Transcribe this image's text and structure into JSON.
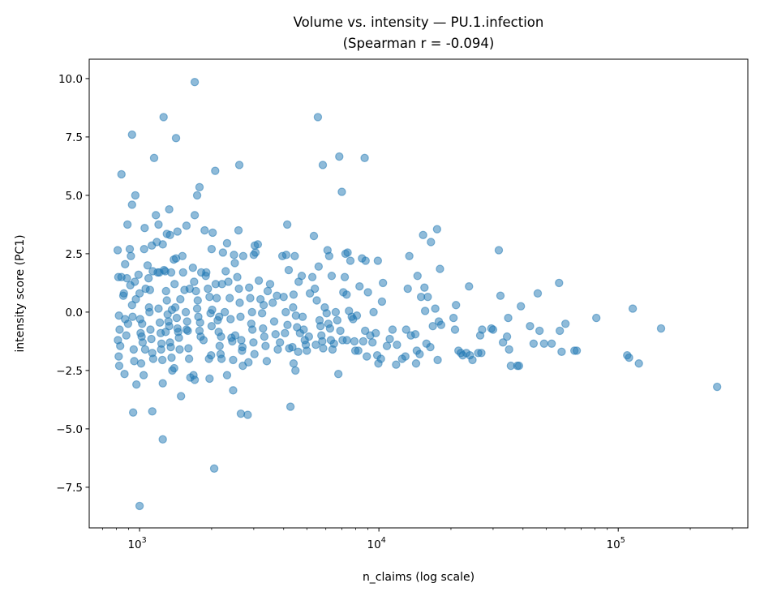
{
  "chart_data": {
    "type": "scatter",
    "title": "Volume vs. intensity — PU.1.infection",
    "subtitle": "(Spearman r = -0.094)",
    "xlabel": "n_claims (log scale)",
    "ylabel": "intensity score (PC1)",
    "x_scale": "log",
    "xlim": [
      616,
      348000
    ],
    "ylim": [
      -9.24,
      10.83
    ],
    "grid": false,
    "legend": "none",
    "marker_color": "#1f77b4",
    "marker_alpha": 0.5,
    "x_ticks": [
      {
        "value": 1000,
        "base": "10",
        "exp": "3"
      },
      {
        "value": 10000,
        "base": "10",
        "exp": "4"
      },
      {
        "value": 100000,
        "base": "10",
        "exp": "5"
      }
    ],
    "y_ticks": [
      {
        "value": -7.5,
        "label": "−7.5"
      },
      {
        "value": -5.0,
        "label": "−5.0"
      },
      {
        "value": -2.5,
        "label": "−2.5"
      },
      {
        "value": 0.0,
        "label": "0.0"
      },
      {
        "value": 2.5,
        "label": "2.5"
      },
      {
        "value": 5.0,
        "label": "5.0"
      },
      {
        "value": 7.5,
        "label": "7.5"
      },
      {
        "value": 10.0,
        "label": "10.0"
      }
    ],
    "points": [
      [
        810,
        2.65
      ],
      [
        815,
        1.5
      ],
      [
        820,
        -0.15
      ],
      [
        825,
        -0.75
      ],
      [
        812,
        -1.2
      ],
      [
        830,
        -1.45
      ],
      [
        818,
        -1.9
      ],
      [
        822,
        -2.3
      ],
      [
        840,
        1.5
      ],
      [
        840,
        5.9
      ],
      [
        855,
        0.7
      ],
      [
        860,
        0.8
      ],
      [
        870,
        -0.3
      ],
      [
        880,
        -1.0
      ],
      [
        865,
        -2.65
      ],
      [
        870,
        2.05
      ],
      [
        885,
        1.45
      ],
      [
        890,
        3.75
      ],
      [
        895,
        -0.5
      ],
      [
        910,
        2.7
      ],
      [
        920,
        2.4
      ],
      [
        915,
        1.15
      ],
      [
        930,
        0.3
      ],
      [
        935,
        -0.2
      ],
      [
        945,
        -1.6
      ],
      [
        950,
        -2.1
      ],
      [
        960,
        5.0
      ],
      [
        930,
        4.6
      ],
      [
        930,
        7.6
      ],
      [
        940,
        -4.3
      ],
      [
        970,
        -3.1
      ],
      [
        955,
        1.3
      ],
      [
        965,
        0.55
      ],
      [
        990,
        1.6
      ],
      [
        1000,
        0.8
      ],
      [
        1005,
        -0.3
      ],
      [
        1010,
        -0.9
      ],
      [
        1020,
        -1.05
      ],
      [
        1030,
        -1.3
      ],
      [
        1015,
        -2.2
      ],
      [
        1040,
        -2.7
      ],
      [
        1050,
        3.6
      ],
      [
        1045,
        2.7
      ],
      [
        1060,
        1.0
      ],
      [
        1000,
        -8.3
      ],
      [
        1025,
        -0.5
      ],
      [
        1055,
        -1.6
      ],
      [
        1080,
        2.0
      ],
      [
        1090,
        1.45
      ],
      [
        1095,
        0.2
      ],
      [
        1100,
        0.0
      ],
      [
        1110,
        -0.75
      ],
      [
        1120,
        -1.15
      ],
      [
        1130,
        -1.75
      ],
      [
        1140,
        -2.0
      ],
      [
        1125,
        2.85
      ],
      [
        1150,
        6.6
      ],
      [
        1130,
        -4.25
      ],
      [
        1105,
        0.95
      ],
      [
        1135,
        1.75
      ],
      [
        1170,
        4.15
      ],
      [
        1180,
        3.0
      ],
      [
        1190,
        1.7
      ],
      [
        1210,
        1.7
      ],
      [
        1200,
        0.15
      ],
      [
        1215,
        -0.45
      ],
      [
        1225,
        -0.9
      ],
      [
        1235,
        -1.35
      ],
      [
        1245,
        -2.05
      ],
      [
        1250,
        -3.05
      ],
      [
        1260,
        8.35
      ],
      [
        1200,
        3.75
      ],
      [
        1250,
        2.9
      ],
      [
        1250,
        -5.45
      ],
      [
        1230,
        -1.6
      ],
      [
        1265,
        1.8
      ],
      [
        1280,
        1.75
      ],
      [
        1290,
        0.9
      ],
      [
        1300,
        0.5
      ],
      [
        1310,
        -0.1
      ],
      [
        1320,
        -0.4
      ],
      [
        1330,
        -0.6
      ],
      [
        1340,
        -1.3
      ],
      [
        1350,
        -1.5
      ],
      [
        1360,
        -1.95
      ],
      [
        1370,
        -2.5
      ],
      [
        1330,
        4.4
      ],
      [
        1340,
        3.3
      ],
      [
        1355,
        1.7
      ],
      [
        1365,
        0.1
      ],
      [
        1300,
        3.35
      ],
      [
        1285,
        -0.85
      ],
      [
        1390,
        2.25
      ],
      [
        1420,
        2.3
      ],
      [
        1400,
        1.2
      ],
      [
        1410,
        0.2
      ],
      [
        1430,
        -0.25
      ],
      [
        1440,
        -0.7
      ],
      [
        1450,
        -0.85
      ],
      [
        1460,
        -1.1
      ],
      [
        1470,
        -1.6
      ],
      [
        1420,
        7.45
      ],
      [
        1440,
        3.45
      ],
      [
        1490,
        -3.6
      ],
      [
        1480,
        0.55
      ],
      [
        1395,
        -2.4
      ],
      [
        1510,
        2.4
      ],
      [
        1520,
        1.7
      ],
      [
        1540,
        0.95
      ],
      [
        1560,
        0.0
      ],
      [
        1570,
        -0.75
      ],
      [
        1590,
        -0.8
      ],
      [
        1600,
        -1.55
      ],
      [
        1610,
        -2.0
      ],
      [
        1630,
        -2.8
      ],
      [
        1570,
        3.7
      ],
      [
        1580,
        -0.4
      ],
      [
        1620,
        1.0
      ],
      [
        1700,
        9.85
      ],
      [
        1780,
        5.35
      ],
      [
        1740,
        5.0
      ],
      [
        1700,
        4.15
      ],
      [
        1670,
        1.9
      ],
      [
        1690,
        1.3
      ],
      [
        1720,
        0.9
      ],
      [
        1740,
        0.15
      ],
      [
        1760,
        -0.2
      ],
      [
        1780,
        -0.8
      ],
      [
        1800,
        -1.05
      ],
      [
        1680,
        -2.7
      ],
      [
        1700,
        -2.9
      ],
      [
        1810,
        1.7
      ],
      [
        1750,
        0.5
      ],
      [
        1790,
        -0.45
      ],
      [
        1870,
        3.5
      ],
      [
        2020,
        3.4
      ],
      [
        2000,
        2.7
      ],
      [
        1900,
        1.7
      ],
      [
        1930,
        1.0
      ],
      [
        1960,
        0.65
      ],
      [
        1980,
        -0.05
      ],
      [
        2000,
        -0.6
      ],
      [
        1850,
        -1.2
      ],
      [
        1990,
        -1.85
      ],
      [
        1950,
        -2.0
      ],
      [
        1960,
        -2.85
      ],
      [
        1890,
        1.55
      ],
      [
        2050,
        -6.7
      ],
      [
        2010,
        0.1
      ],
      [
        2070,
        6.05
      ],
      [
        2080,
        1.2
      ],
      [
        2100,
        0.6
      ],
      [
        2120,
        -0.35
      ],
      [
        2140,
        -0.85
      ],
      [
        2160,
        -1.45
      ],
      [
        2180,
        -1.8
      ],
      [
        2200,
        -2.0
      ],
      [
        2230,
        2.55
      ],
      [
        2190,
        -1.05
      ],
      [
        2150,
        -0.2
      ],
      [
        2210,
        1.2
      ],
      [
        2320,
        2.95
      ],
      [
        2290,
        1.75
      ],
      [
        2350,
        1.3
      ],
      [
        2380,
        0.6
      ],
      [
        2400,
        -0.3
      ],
      [
        2420,
        -1.1
      ],
      [
        2440,
        -1.25
      ],
      [
        2460,
        -2.05
      ],
      [
        2320,
        -2.7
      ],
      [
        2460,
        -3.35
      ],
      [
        2480,
        2.45
      ],
      [
        2500,
        2.1
      ],
      [
        2510,
        -1.0
      ],
      [
        2270,
        0.0
      ],
      [
        2610,
        6.3
      ],
      [
        2590,
        3.5
      ],
      [
        2560,
        1.5
      ],
      [
        2600,
        1.0
      ],
      [
        2620,
        0.4
      ],
      [
        2640,
        -0.2
      ],
      [
        2660,
        -1.2
      ],
      [
        2680,
        -1.65
      ],
      [
        2700,
        -2.3
      ],
      [
        2650,
        -4.35
      ],
      [
        2710,
        2.4
      ],
      [
        2690,
        -1.5
      ],
      [
        2830,
        -4.4
      ],
      [
        2850,
        -2.15
      ],
      [
        2870,
        1.05
      ],
      [
        2900,
        0.6
      ],
      [
        2930,
        -0.5
      ],
      [
        2960,
        -0.75
      ],
      [
        2990,
        -1.3
      ],
      [
        3020,
        -1.8
      ],
      [
        3050,
        2.55
      ],
      [
        3000,
        2.45
      ],
      [
        3030,
        2.85
      ],
      [
        2950,
        0.0
      ],
      [
        3120,
        2.9
      ],
      [
        3150,
        1.35
      ],
      [
        3200,
        0.55
      ],
      [
        3250,
        -0.05
      ],
      [
        3280,
        -0.7
      ],
      [
        3320,
        -1.05
      ],
      [
        3360,
        -1.45
      ],
      [
        3400,
        -2.1
      ],
      [
        3430,
        0.9
      ],
      [
        3300,
        0.3
      ],
      [
        3510,
        1.2
      ],
      [
        3600,
        0.4
      ],
      [
        3650,
        -0.4
      ],
      [
        3700,
        -0.95
      ],
      [
        3780,
        -1.6
      ],
      [
        3860,
        -1.3
      ],
      [
        3750,
        0.7
      ],
      [
        4140,
        3.75
      ],
      [
        3950,
        2.4
      ],
      [
        4200,
        1.8
      ],
      [
        4000,
        0.65
      ],
      [
        4080,
        0.0
      ],
      [
        4150,
        -0.55
      ],
      [
        4220,
        -1.55
      ],
      [
        4270,
        -4.05
      ],
      [
        4400,
        -2.2
      ],
      [
        4050,
        -0.9
      ],
      [
        4100,
        2.45
      ],
      [
        4480,
        -2.5
      ],
      [
        4350,
        -1.5
      ],
      [
        4600,
        -1.7
      ],
      [
        4400,
        0.75
      ],
      [
        4500,
        -0.15
      ],
      [
        4550,
        -0.65
      ],
      [
        4680,
        -0.9
      ],
      [
        4620,
        1.3
      ],
      [
        4450,
        2.4
      ],
      [
        4380,
        0.2
      ],
      [
        4760,
        1.55
      ],
      [
        4800,
        -0.2
      ],
      [
        4850,
        -0.75
      ],
      [
        4900,
        -1.2
      ],
      [
        4950,
        -1.4
      ],
      [
        5000,
        -1.65
      ],
      [
        5100,
        -1.05
      ],
      [
        5150,
        0.8
      ],
      [
        5560,
        8.35
      ],
      [
        5830,
        6.3
      ],
      [
        5350,
        3.26
      ],
      [
        5600,
        1.95
      ],
      [
        5270,
        1.5
      ],
      [
        5400,
        1.0
      ],
      [
        5500,
        0.5
      ],
      [
        5650,
        -0.35
      ],
      [
        5700,
        -0.6
      ],
      [
        5750,
        -1.0
      ],
      [
        5800,
        -1.25
      ],
      [
        5850,
        -1.55
      ],
      [
        5450,
        -1.4
      ],
      [
        6100,
        2.65
      ],
      [
        6200,
        2.4
      ],
      [
        5940,
        0.2
      ],
      [
        6050,
        -0.05
      ],
      [
        6150,
        -0.5
      ],
      [
        6250,
        -0.7
      ],
      [
        6300,
        -1.2
      ],
      [
        6400,
        -1.6
      ],
      [
        6490,
        -1.35
      ],
      [
        6350,
        1.55
      ],
      [
        6830,
        6.66
      ],
      [
        7000,
        5.15
      ],
      [
        7250,
        2.5
      ],
      [
        7100,
        0.85
      ],
      [
        6600,
        0.0
      ],
      [
        6700,
        -0.35
      ],
      [
        6900,
        -0.8
      ],
      [
        7050,
        -1.2
      ],
      [
        6770,
        -2.65
      ],
      [
        7200,
        1.5
      ],
      [
        7400,
        2.55
      ],
      [
        7600,
        2.2
      ],
      [
        7330,
        0.75
      ],
      [
        7500,
        0.05
      ],
      [
        7700,
        -0.2
      ],
      [
        7800,
        -0.3
      ],
      [
        7350,
        -1.2
      ],
      [
        7970,
        -1.65
      ],
      [
        7900,
        -1.25
      ],
      [
        8720,
        6.6
      ],
      [
        8500,
        2.3
      ],
      [
        8300,
        1.1
      ],
      [
        8090,
        -0.15
      ],
      [
        8760,
        -0.8
      ],
      [
        8600,
        -1.25
      ],
      [
        8200,
        -1.65
      ],
      [
        8900,
        -1.9
      ],
      [
        8800,
        2.2
      ],
      [
        9900,
        2.2
      ],
      [
        9000,
        0.85
      ],
      [
        9500,
        0.0
      ],
      [
        9200,
        -1.0
      ],
      [
        9400,
        -1.3
      ],
      [
        9840,
        -1.85
      ],
      [
        9950,
        -2.2
      ],
      [
        9700,
        -0.9
      ],
      [
        10400,
        1.25
      ],
      [
        10300,
        0.45
      ],
      [
        11100,
        -1.15
      ],
      [
        10800,
        -1.45
      ],
      [
        10200,
        -2.0
      ],
      [
        11400,
        -0.75
      ],
      [
        11900,
        -1.4
      ],
      [
        12500,
        -2.0
      ],
      [
        11800,
        -2.25
      ],
      [
        13400,
        2.4
      ],
      [
        13200,
        1.0
      ],
      [
        13000,
        -0.75
      ],
      [
        13600,
        -1.0
      ],
      [
        12900,
        -1.9
      ],
      [
        14500,
        1.55
      ],
      [
        15000,
        0.65
      ],
      [
        14200,
        -0.95
      ],
      [
        14400,
        -1.65
      ],
      [
        14800,
        -1.8
      ],
      [
        14300,
        -2.2
      ],
      [
        15300,
        3.3
      ],
      [
        15500,
        1.05
      ],
      [
        16000,
        0.65
      ],
      [
        15600,
        0.05
      ],
      [
        16800,
        -0.6
      ],
      [
        15800,
        -1.35
      ],
      [
        16400,
        -1.5
      ],
      [
        16500,
        3.0
      ],
      [
        17500,
        3.55
      ],
      [
        18000,
        1.85
      ],
      [
        17200,
        0.15
      ],
      [
        17800,
        -0.4
      ],
      [
        18200,
        -0.55
      ],
      [
        17600,
        -2.05
      ],
      [
        21000,
        0.3
      ],
      [
        20500,
        -0.25
      ],
      [
        20800,
        -0.75
      ],
      [
        21500,
        -1.65
      ],
      [
        22000,
        -1.75
      ],
      [
        22400,
        -1.85
      ],
      [
        23800,
        1.1
      ],
      [
        23200,
        -1.75
      ],
      [
        24000,
        -1.85
      ],
      [
        24600,
        -2.05
      ],
      [
        26000,
        -1.75
      ],
      [
        26500,
        -1.0
      ],
      [
        27000,
        -0.75
      ],
      [
        26800,
        -1.75
      ],
      [
        29500,
        -0.7
      ],
      [
        31700,
        2.65
      ],
      [
        32200,
        0.7
      ],
      [
        30000,
        -0.75
      ],
      [
        34700,
        -0.25
      ],
      [
        34300,
        -1.05
      ],
      [
        33000,
        -1.3
      ],
      [
        35000,
        -1.6
      ],
      [
        35600,
        -2.3
      ],
      [
        37900,
        -2.3
      ],
      [
        38500,
        -2.3
      ],
      [
        39200,
        0.25
      ],
      [
        42800,
        -0.6
      ],
      [
        44300,
        -1.35
      ],
      [
        46100,
        0.8
      ],
      [
        46900,
        -0.8
      ],
      [
        49000,
        -1.35
      ],
      [
        52700,
        -1.35
      ],
      [
        56600,
        1.25
      ],
      [
        57000,
        -0.8
      ],
      [
        60200,
        -0.5
      ],
      [
        58000,
        -1.7
      ],
      [
        65600,
        -1.65
      ],
      [
        67100,
        -1.65
      ],
      [
        81000,
        -0.25
      ],
      [
        109000,
        -1.85
      ],
      [
        111000,
        -1.95
      ],
      [
        115000,
        0.15
      ],
      [
        122000,
        -2.2
      ],
      [
        151000,
        -0.7
      ],
      [
        259000,
        -3.2
      ]
    ]
  }
}
